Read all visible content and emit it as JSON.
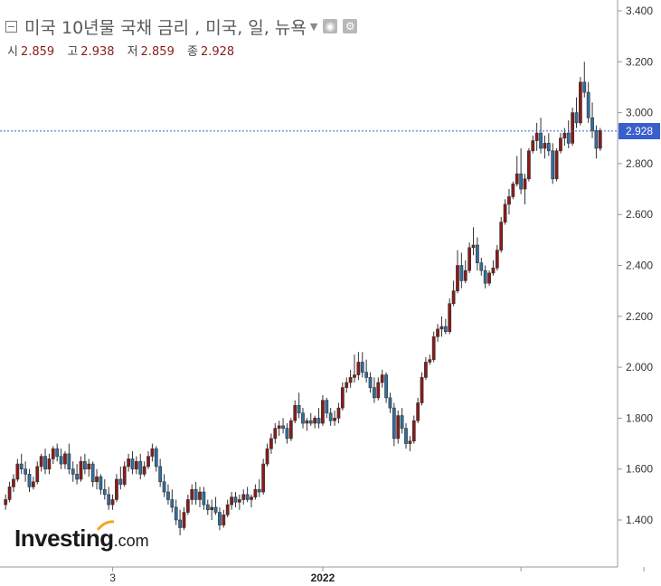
{
  "header": {
    "title": "미국 10년물 국채 금리 , 미국, 일, 뉴욕",
    "collapse_icon": "collapse-box-icon",
    "dropdown_icon": "caret-down-icon",
    "buttons": [
      "eye-icon",
      "gear-icon"
    ]
  },
  "ohlc": {
    "open_label": "시",
    "open": "2.859",
    "high_label": "고",
    "high": "2.938",
    "low_label": "저",
    "low": "2.859",
    "close_label": "종",
    "close": "2.928"
  },
  "logo": {
    "brand": "Investing",
    "suffix": ".com"
  },
  "current_price": {
    "label": "2.928",
    "value": 2.928
  },
  "colors": {
    "up": "#8b1a1a",
    "down": "#2f6fa3",
    "price_line": "#3a5fcd"
  },
  "chart_data": {
    "type": "candlestick",
    "title": "미국 10년물 국채 금리 , 미국, 일, 뉴욕",
    "y_axis_position": "right",
    "ylim": [
      1.2,
      3.45
    ],
    "y_ticks": [
      "1.400",
      "1.600",
      "1.800",
      "2.000",
      "2.200",
      "2.400",
      "2.600",
      "2.800",
      "3.000",
      "3.200",
      "3.400"
    ],
    "x_tick_labels": [
      {
        "label": "3",
        "index": 27,
        "bold": false
      },
      {
        "label": "2022",
        "index": 80,
        "bold": true
      }
    ],
    "x_tick_marks_index": [
      27,
      80,
      130,
      161,
      196
    ],
    "grid": false,
    "series": [
      {
        "ohlc": [
          [
            1.46,
            1.5,
            1.44,
            1.48
          ],
          [
            1.48,
            1.55,
            1.47,
            1.53
          ],
          [
            1.53,
            1.58,
            1.51,
            1.56
          ],
          [
            1.56,
            1.64,
            1.55,
            1.62
          ],
          [
            1.62,
            1.66,
            1.58,
            1.6
          ],
          [
            1.6,
            1.63,
            1.55,
            1.58
          ],
          [
            1.58,
            1.6,
            1.51,
            1.53
          ],
          [
            1.53,
            1.57,
            1.52,
            1.55
          ],
          [
            1.55,
            1.63,
            1.54,
            1.61
          ],
          [
            1.61,
            1.66,
            1.59,
            1.65
          ],
          [
            1.65,
            1.68,
            1.58,
            1.6
          ],
          [
            1.6,
            1.66,
            1.58,
            1.64
          ],
          [
            1.64,
            1.69,
            1.62,
            1.68
          ],
          [
            1.68,
            1.7,
            1.63,
            1.65
          ],
          [
            1.65,
            1.68,
            1.6,
            1.62
          ],
          [
            1.62,
            1.67,
            1.6,
            1.66
          ],
          [
            1.66,
            1.7,
            1.58,
            1.6
          ],
          [
            1.6,
            1.63,
            1.55,
            1.58
          ],
          [
            1.58,
            1.62,
            1.54,
            1.56
          ],
          [
            1.56,
            1.65,
            1.55,
            1.63
          ],
          [
            1.63,
            1.66,
            1.58,
            1.6
          ],
          [
            1.6,
            1.64,
            1.57,
            1.62
          ],
          [
            1.62,
            1.63,
            1.53,
            1.55
          ],
          [
            1.55,
            1.6,
            1.52,
            1.57
          ],
          [
            1.57,
            1.58,
            1.5,
            1.52
          ],
          [
            1.52,
            1.56,
            1.48,
            1.5
          ],
          [
            1.5,
            1.53,
            1.44,
            1.46
          ],
          [
            1.46,
            1.5,
            1.44,
            1.48
          ],
          [
            1.48,
            1.58,
            1.47,
            1.56
          ],
          [
            1.56,
            1.61,
            1.52,
            1.54
          ],
          [
            1.54,
            1.63,
            1.53,
            1.61
          ],
          [
            1.61,
            1.66,
            1.59,
            1.64
          ],
          [
            1.64,
            1.67,
            1.58,
            1.6
          ],
          [
            1.6,
            1.65,
            1.58,
            1.63
          ],
          [
            1.63,
            1.66,
            1.56,
            1.58
          ],
          [
            1.58,
            1.63,
            1.57,
            1.61
          ],
          [
            1.61,
            1.67,
            1.6,
            1.65
          ],
          [
            1.65,
            1.7,
            1.63,
            1.68
          ],
          [
            1.68,
            1.69,
            1.59,
            1.61
          ],
          [
            1.61,
            1.64,
            1.53,
            1.55
          ],
          [
            1.55,
            1.58,
            1.49,
            1.51
          ],
          [
            1.51,
            1.54,
            1.46,
            1.48
          ],
          [
            1.48,
            1.52,
            1.43,
            1.45
          ],
          [
            1.45,
            1.48,
            1.38,
            1.4
          ],
          [
            1.4,
            1.44,
            1.34,
            1.37
          ],
          [
            1.37,
            1.45,
            1.36,
            1.43
          ],
          [
            1.43,
            1.5,
            1.42,
            1.48
          ],
          [
            1.48,
            1.54,
            1.46,
            1.52
          ],
          [
            1.52,
            1.55,
            1.46,
            1.48
          ],
          [
            1.48,
            1.53,
            1.45,
            1.51
          ],
          [
            1.51,
            1.53,
            1.44,
            1.46
          ],
          [
            1.46,
            1.48,
            1.42,
            1.44
          ],
          [
            1.44,
            1.48,
            1.4,
            1.45
          ],
          [
            1.45,
            1.49,
            1.42,
            1.43
          ],
          [
            1.43,
            1.45,
            1.36,
            1.38
          ],
          [
            1.38,
            1.44,
            1.37,
            1.42
          ],
          [
            1.42,
            1.48,
            1.41,
            1.46
          ],
          [
            1.46,
            1.51,
            1.44,
            1.49
          ],
          [
            1.49,
            1.51,
            1.45,
            1.47
          ],
          [
            1.47,
            1.5,
            1.44,
            1.48
          ],
          [
            1.48,
            1.52,
            1.46,
            1.5
          ],
          [
            1.5,
            1.53,
            1.47,
            1.48
          ],
          [
            1.48,
            1.5,
            1.45,
            1.49
          ],
          [
            1.49,
            1.54,
            1.48,
            1.52
          ],
          [
            1.52,
            1.56,
            1.49,
            1.51
          ],
          [
            1.51,
            1.64,
            1.5,
            1.62
          ],
          [
            1.62,
            1.7,
            1.61,
            1.68
          ],
          [
            1.68,
            1.74,
            1.66,
            1.72
          ],
          [
            1.72,
            1.78,
            1.7,
            1.76
          ],
          [
            1.76,
            1.79,
            1.73,
            1.77
          ],
          [
            1.77,
            1.8,
            1.74,
            1.76
          ],
          [
            1.76,
            1.78,
            1.7,
            1.72
          ],
          [
            1.72,
            1.8,
            1.71,
            1.79
          ],
          [
            1.79,
            1.87,
            1.78,
            1.85
          ],
          [
            1.85,
            1.9,
            1.8,
            1.82
          ],
          [
            1.82,
            1.84,
            1.76,
            1.78
          ],
          [
            1.78,
            1.8,
            1.75,
            1.79
          ],
          [
            1.79,
            1.82,
            1.77,
            1.78
          ],
          [
            1.78,
            1.81,
            1.76,
            1.8
          ],
          [
            1.8,
            1.84,
            1.76,
            1.78
          ],
          [
            1.78,
            1.89,
            1.77,
            1.87
          ],
          [
            1.87,
            1.88,
            1.8,
            1.82
          ],
          [
            1.82,
            1.84,
            1.77,
            1.79
          ],
          [
            1.79,
            1.83,
            1.77,
            1.8
          ],
          [
            1.8,
            1.86,
            1.78,
            1.84
          ],
          [
            1.84,
            1.94,
            1.83,
            1.92
          ],
          [
            1.92,
            1.96,
            1.9,
            1.94
          ],
          [
            1.94,
            1.99,
            1.92,
            1.96
          ],
          [
            1.96,
            2.05,
            1.94,
            1.97
          ],
          [
            1.97,
            2.06,
            1.95,
            2.02
          ],
          [
            2.02,
            2.06,
            1.96,
            1.98
          ],
          [
            1.98,
            2.03,
            1.94,
            1.96
          ],
          [
            1.96,
            1.98,
            1.9,
            1.92
          ],
          [
            1.92,
            1.96,
            1.86,
            1.88
          ],
          [
            1.88,
            1.96,
            1.87,
            1.94
          ],
          [
            1.94,
            1.99,
            1.92,
            1.97
          ],
          [
            1.97,
            1.98,
            1.86,
            1.88
          ],
          [
            1.88,
            1.9,
            1.82,
            1.84
          ],
          [
            1.84,
            1.86,
            1.69,
            1.72
          ],
          [
            1.72,
            1.83,
            1.7,
            1.81
          ],
          [
            1.81,
            1.84,
            1.74,
            1.76
          ],
          [
            1.76,
            1.78,
            1.68,
            1.7
          ],
          [
            1.7,
            1.73,
            1.67,
            1.71
          ],
          [
            1.71,
            1.81,
            1.7,
            1.79
          ],
          [
            1.79,
            1.88,
            1.78,
            1.86
          ],
          [
            1.86,
            1.98,
            1.85,
            1.96
          ],
          [
            1.96,
            2.04,
            1.95,
            2.02
          ],
          [
            2.02,
            2.05,
            2.01,
            2.03
          ],
          [
            2.03,
            2.14,
            2.02,
            2.12
          ],
          [
            2.12,
            2.17,
            2.1,
            2.15
          ],
          [
            2.15,
            2.2,
            2.12,
            2.16
          ],
          [
            2.16,
            2.19,
            2.13,
            2.14
          ],
          [
            2.14,
            2.27,
            2.13,
            2.25
          ],
          [
            2.25,
            2.34,
            2.24,
            2.3
          ],
          [
            2.3,
            2.46,
            2.29,
            2.4
          ],
          [
            2.4,
            2.45,
            2.31,
            2.34
          ],
          [
            2.34,
            2.42,
            2.33,
            2.38
          ],
          [
            2.38,
            2.49,
            2.37,
            2.47
          ],
          [
            2.47,
            2.55,
            2.44,
            2.48
          ],
          [
            2.48,
            2.51,
            2.38,
            2.41
          ],
          [
            2.41,
            2.43,
            2.36,
            2.38
          ],
          [
            2.38,
            2.4,
            2.31,
            2.33
          ],
          [
            2.33,
            2.38,
            2.32,
            2.37
          ],
          [
            2.37,
            2.42,
            2.36,
            2.39
          ],
          [
            2.39,
            2.48,
            2.38,
            2.46
          ],
          [
            2.46,
            2.59,
            2.45,
            2.57
          ],
          [
            2.57,
            2.66,
            2.56,
            2.64
          ],
          [
            2.64,
            2.7,
            2.6,
            2.67
          ],
          [
            2.67,
            2.73,
            2.66,
            2.72
          ],
          [
            2.72,
            2.83,
            2.71,
            2.76
          ],
          [
            2.76,
            2.86,
            2.68,
            2.7
          ],
          [
            2.7,
            2.76,
            2.64,
            2.74
          ],
          [
            2.74,
            2.86,
            2.73,
            2.85
          ],
          [
            2.85,
            2.91,
            2.84,
            2.89
          ],
          [
            2.89,
            2.96,
            2.85,
            2.92
          ],
          [
            2.92,
            2.98,
            2.84,
            2.86
          ],
          [
            2.86,
            2.91,
            2.82,
            2.88
          ],
          [
            2.88,
            2.92,
            2.83,
            2.85
          ],
          [
            2.85,
            2.88,
            2.72,
            2.74
          ],
          [
            2.74,
            2.86,
            2.73,
            2.85
          ],
          [
            2.85,
            2.92,
            2.84,
            2.9
          ],
          [
            2.9,
            2.94,
            2.87,
            2.92
          ],
          [
            2.92,
            2.97,
            2.86,
            2.88
          ],
          [
            2.88,
            3.02,
            2.87,
            3.0
          ],
          [
            3.0,
            3.06,
            2.94,
            2.96
          ],
          [
            2.96,
            3.14,
            2.95,
            3.12
          ],
          [
            3.12,
            3.2,
            3.06,
            3.08
          ],
          [
            3.08,
            3.12,
            2.96,
            2.98
          ],
          [
            2.98,
            3.04,
            2.9,
            2.93
          ],
          [
            2.93,
            2.95,
            2.82,
            2.86
          ],
          [
            2.86,
            2.94,
            2.85,
            2.93
          ]
        ]
      }
    ]
  }
}
